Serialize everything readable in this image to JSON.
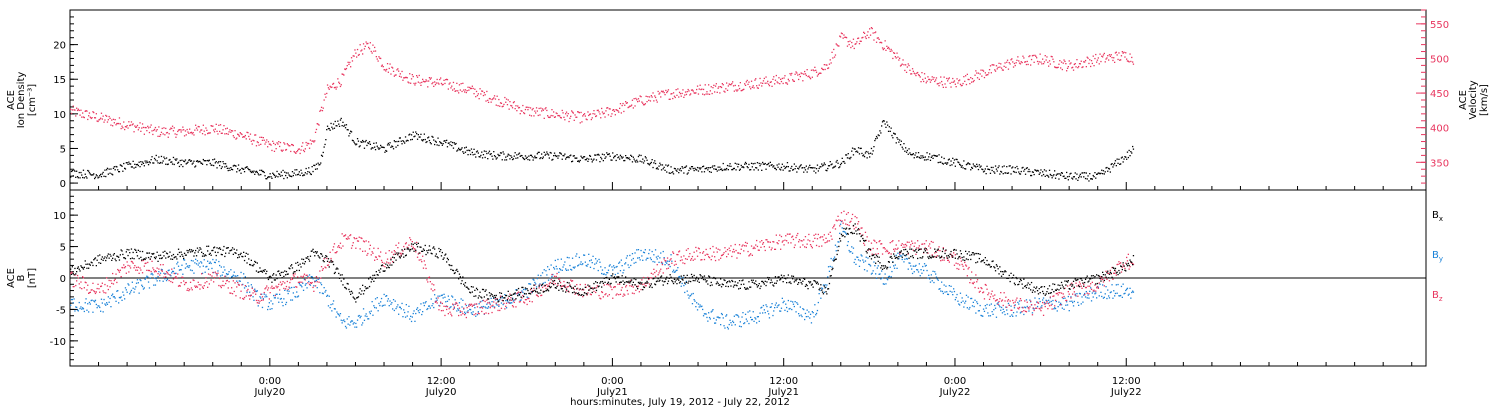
{
  "colors": {
    "black": "#000000",
    "pink": "#e8355e",
    "blue": "#1a82d8",
    "axis": "#000000"
  },
  "xaxis": {
    "label": "hours:minutes, July 19, 2012 - July 22, 2012",
    "range_hours": [
      0,
      95
    ],
    "ticks": [
      {
        "t": 14,
        "label": "0:00",
        "sub": "July20"
      },
      {
        "t": 26,
        "label": "12:00",
        "sub": "July20"
      },
      {
        "t": 38,
        "label": "0:00",
        "sub": "July21"
      },
      {
        "t": 50,
        "label": "12:00",
        "sub": "July21"
      },
      {
        "t": 62,
        "label": "0:00",
        "sub": "July22"
      },
      {
        "t": 74,
        "label": "12:00",
        "sub": "July22"
      }
    ]
  },
  "chart_data": [
    {
      "type": "scatter",
      "panel": "top",
      "ylabel_left": [
        "ACE",
        "Ion Density",
        "[cm⁻³]"
      ],
      "ylabel_right": [
        "ACE",
        "Velocity",
        "[km/s]"
      ],
      "y_left_range": [
        -1,
        25
      ],
      "y_left_ticks": [
        0,
        5,
        10,
        15,
        20
      ],
      "y_right_range": [
        310,
        570
      ],
      "y_right_ticks": [
        350,
        400,
        450,
        500,
        550
      ],
      "series": [
        {
          "axis": "left",
          "color": "black",
          "x": [
            0,
            2,
            4,
            6,
            8,
            10,
            12,
            14,
            16,
            17,
            17.5,
            18,
            19,
            20,
            22,
            24,
            26,
            28,
            30,
            32,
            34,
            36,
            38,
            40,
            42,
            44,
            46,
            48,
            50,
            52,
            53,
            54,
            55,
            56,
            57,
            58,
            59,
            60,
            62,
            64,
            66,
            68,
            70,
            72,
            74,
            74.5
          ],
          "y": [
            1.5,
            1.3,
            2.5,
            3.5,
            3,
            3,
            2,
            1.2,
            1.5,
            2,
            3,
            8,
            9,
            6,
            5,
            7,
            6,
            4.5,
            4,
            4,
            4,
            3.5,
            4,
            3.5,
            2,
            2,
            2.5,
            2.5,
            2.5,
            2,
            2.5,
            3,
            5,
            4,
            9,
            6,
            4,
            4,
            3,
            2,
            2,
            1.5,
            1,
            1,
            4,
            5
          ]
        },
        {
          "axis": "right",
          "color": "pink",
          "x": [
            0,
            2,
            4,
            6,
            8,
            10,
            12,
            14,
            16,
            17,
            17.5,
            18,
            19,
            20,
            21,
            22,
            24,
            26,
            28,
            30,
            32,
            34,
            36,
            38,
            40,
            42,
            44,
            46,
            48,
            50,
            52,
            53,
            54,
            55,
            56,
            57,
            58,
            59,
            60,
            62,
            64,
            66,
            68,
            70,
            72,
            74,
            74.5
          ],
          "y": [
            425,
            415,
            405,
            395,
            395,
            400,
            390,
            375,
            370,
            380,
            420,
            455,
            470,
            510,
            520,
            490,
            470,
            465,
            455,
            440,
            425,
            420,
            415,
            425,
            440,
            450,
            455,
            460,
            465,
            470,
            480,
            490,
            530,
            520,
            540,
            520,
            500,
            480,
            470,
            465,
            480,
            495,
            500,
            490,
            500,
            505,
            500
          ]
        }
      ]
    },
    {
      "type": "scatter",
      "panel": "bottom",
      "ylabel_left": [
        "ACE",
        "B",
        "[nT]"
      ],
      "y_left_range": [
        -14,
        14
      ],
      "y_left_ticks": [
        -10,
        -5,
        0,
        5,
        10
      ],
      "series": [
        {
          "name": "Bx",
          "color": "black",
          "x": [
            0,
            2,
            4,
            6,
            8,
            10,
            12,
            13,
            14,
            16,
            17,
            18,
            20,
            22,
            24,
            26,
            28,
            30,
            32,
            34,
            36,
            38,
            40,
            42,
            44,
            46,
            48,
            50,
            52,
            53,
            54,
            55,
            56,
            57,
            58,
            60,
            62,
            64,
            66,
            68,
            70,
            72,
            74,
            74.5
          ],
          "y": [
            1,
            3,
            4,
            3.5,
            4,
            4.5,
            4,
            2,
            0,
            2,
            4,
            3,
            -3,
            2,
            5,
            4,
            -2,
            -3,
            -2,
            -1,
            -2,
            0,
            -1,
            0,
            0,
            -1,
            -1,
            0,
            -1,
            -2,
            7,
            8,
            4,
            2,
            4,
            4,
            4,
            3,
            0,
            -2,
            -1,
            0,
            2,
            3
          ]
        },
        {
          "name": "By",
          "color": "blue",
          "x": [
            0,
            2,
            4,
            6,
            8,
            10,
            12,
            13,
            14,
            16,
            17,
            18,
            19,
            20,
            22,
            24,
            26,
            28,
            30,
            32,
            34,
            36,
            38,
            40,
            42,
            44,
            46,
            48,
            50,
            52,
            53,
            54,
            55,
            56,
            57,
            58,
            60,
            62,
            64,
            66,
            68,
            70,
            72,
            74,
            74.5
          ],
          "y": [
            -4,
            -4.5,
            -2,
            0,
            2,
            2,
            0,
            -3,
            -4,
            -2,
            0,
            -3,
            -7,
            -7,
            -3,
            -6,
            -3,
            -5,
            -4,
            -2,
            2,
            3,
            1,
            4,
            3,
            -5,
            -7,
            -6,
            -4,
            -6,
            0,
            8,
            3,
            2,
            0,
            3,
            1,
            -3,
            -5,
            -5,
            -4,
            -4,
            -2,
            -2,
            -2
          ]
        },
        {
          "name": "Bz",
          "color": "pink",
          "x": [
            0,
            2,
            4,
            6,
            8,
            10,
            12,
            13,
            14,
            16,
            17,
            18,
            19,
            20,
            22,
            24,
            26,
            28,
            30,
            32,
            34,
            36,
            38,
            40,
            42,
            44,
            46,
            48,
            50,
            52,
            53,
            54,
            55,
            56,
            57,
            58,
            60,
            62,
            64,
            66,
            68,
            70,
            72,
            74,
            74.5
          ],
          "y": [
            0,
            -2,
            2,
            2,
            -1,
            0,
            -2,
            -3,
            -2,
            0,
            -1,
            3,
            6,
            6,
            3,
            6,
            -5,
            -5,
            -4,
            -3,
            0,
            -2,
            -2,
            -1,
            3,
            4,
            4,
            5,
            6,
            6,
            6,
            10,
            9,
            5,
            5,
            5,
            5,
            3,
            -2,
            -4,
            -5,
            -2,
            -1,
            3,
            2
          ]
        }
      ],
      "legend": [
        "Bx",
        "By",
        "Bz"
      ]
    }
  ]
}
